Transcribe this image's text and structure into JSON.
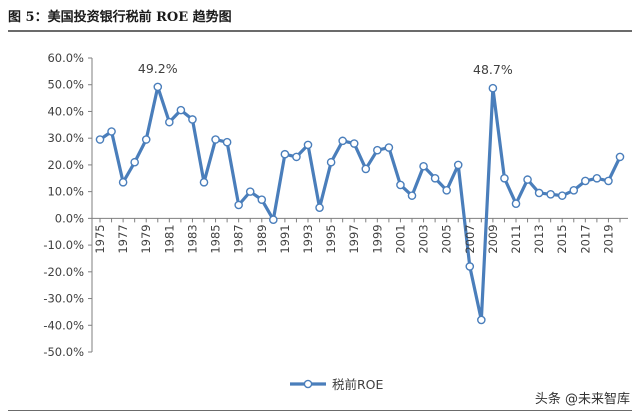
{
  "figure": {
    "title": "图 5：美国投资银行税前 ROE 趋势图",
    "watermark": "头条 @未来智库"
  },
  "colors": {
    "series": "#4a7ebb",
    "marker_fill": "#ffffff",
    "axis": "#7f7f7f",
    "text": "#404040"
  },
  "chart_data": {
    "type": "line",
    "title": "",
    "xlabel": "",
    "ylabel": "",
    "ylim": [
      -50,
      60
    ],
    "yticks": [
      60,
      50,
      40,
      30,
      20,
      10,
      0,
      -10,
      -20,
      -30,
      -40,
      -50
    ],
    "ytick_labels": [
      "60.0%",
      "50.0%",
      "40.0%",
      "30.0%",
      "20.0%",
      "10.0%",
      "0.0%",
      "-10.0%",
      "-20.0%",
      "-30.0%",
      "-40.0%",
      "-50.0%"
    ],
    "x": [
      1975,
      1976,
      1977,
      1978,
      1979,
      1980,
      1981,
      1982,
      1983,
      1984,
      1985,
      1986,
      1987,
      1988,
      1989,
      1990,
      1991,
      1992,
      1993,
      1994,
      1995,
      1996,
      1997,
      1998,
      1999,
      2000,
      2001,
      2002,
      2003,
      2004,
      2005,
      2006,
      2007,
      2008,
      2009,
      2010,
      2011,
      2012,
      2013,
      2014,
      2015,
      2016,
      2017,
      2018,
      2019,
      2020
    ],
    "xtick_labels": [
      "1975",
      "1977",
      "1979",
      "1981",
      "1983",
      "1985",
      "1987",
      "1989",
      "1991",
      "1993",
      "1995",
      "1997",
      "1999",
      "2001",
      "2003",
      "2005",
      "2007",
      "2009",
      "2011",
      "2013",
      "2015",
      "2017",
      "2019"
    ],
    "grid": false,
    "legend_position": "bottom-center",
    "series": [
      {
        "name": "税前ROE",
        "values": [
          29.5,
          32.5,
          13.5,
          21,
          29.5,
          49.2,
          36,
          40.5,
          37,
          13.5,
          29.5,
          28.5,
          5,
          10,
          7,
          -0.5,
          24,
          23,
          27.5,
          4,
          21,
          29,
          28,
          18.5,
          25.5,
          26.5,
          12.5,
          8.5,
          19.5,
          15,
          10.5,
          20,
          -18,
          -38,
          48.7,
          15,
          5.5,
          14.5,
          9.5,
          9,
          8.5,
          10.5,
          14,
          15,
          14,
          23
        ]
      }
    ],
    "annotations": [
      {
        "x": 1980,
        "y": 49.2,
        "text": "49.2%"
      },
      {
        "x": 2009,
        "y": 48.7,
        "text": "48.7%"
      }
    ]
  }
}
